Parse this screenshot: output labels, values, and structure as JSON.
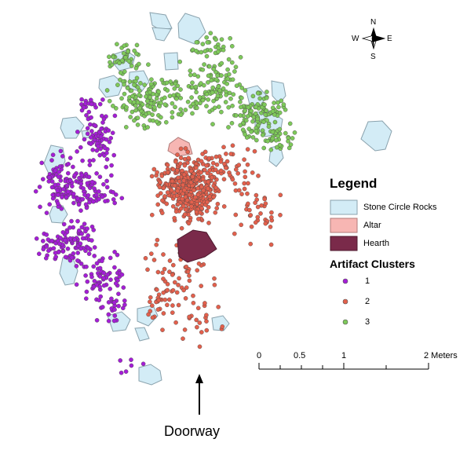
{
  "map": {
    "legend": {
      "title": "Legend",
      "items": [
        {
          "label": "Stone Circle Rocks",
          "fill": "#d3ecf6",
          "stroke": "#8aa2ad"
        },
        {
          "label": "Altar",
          "fill": "#f7b6b3",
          "stroke": "#b07a78"
        },
        {
          "label": "Hearth",
          "fill": "#7a2a4a",
          "stroke": "#4d1a2e"
        }
      ],
      "clusters_title": "Artifact Clusters",
      "clusters": [
        {
          "label": "1",
          "color": "#a41ed6"
        },
        {
          "label": "2",
          "color": "#e3604c"
        },
        {
          "label": "3",
          "color": "#7ec95a"
        }
      ]
    },
    "compass": {
      "n": "N",
      "s": "S",
      "e": "E",
      "w": "W"
    },
    "scale_bar": {
      "ticks": [
        "0",
        "0.5",
        "1",
        "2 Meters"
      ]
    },
    "doorway_label": "Doorway"
  }
}
